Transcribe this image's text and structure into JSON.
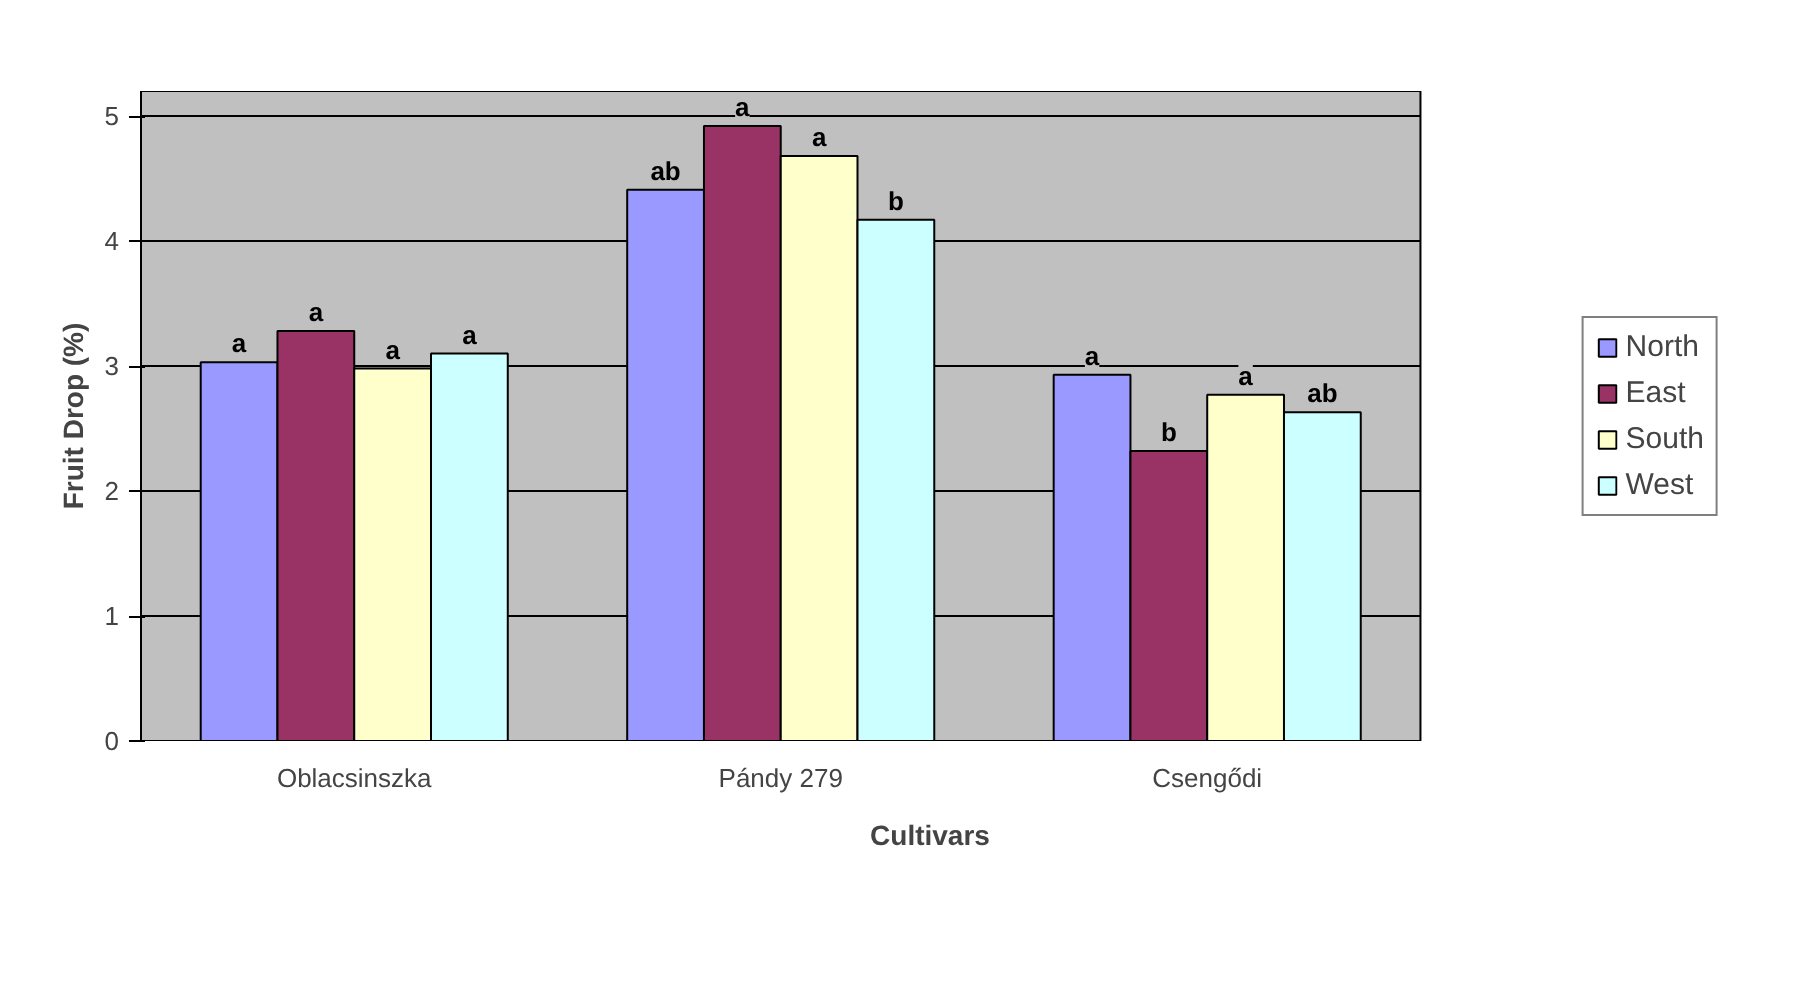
{
  "chart_data": {
    "type": "bar",
    "xlabel": "Cultivars",
    "ylabel": "Fruit Drop (%)",
    "categories": [
      "Oblacsinszka",
      "Pándy 279",
      "Csengődi"
    ],
    "series": [
      {
        "name": "North",
        "color": "#9999ff",
        "values": [
          3.03,
          4.41,
          2.93
        ],
        "value_labels": [
          "a",
          "ab",
          "a"
        ]
      },
      {
        "name": "East",
        "color": "#993366",
        "values": [
          3.28,
          4.92,
          2.32
        ],
        "value_labels": [
          "a",
          "a",
          "b"
        ]
      },
      {
        "name": "South",
        "color": "#ffffcc",
        "values": [
          2.98,
          4.68,
          2.77
        ],
        "value_labels": [
          "a",
          "a",
          "a"
        ]
      },
      {
        "name": "West",
        "color": "#ccffff",
        "values": [
          3.1,
          4.17,
          2.63
        ],
        "value_labels": [
          "a",
          "b",
          "ab"
        ]
      }
    ],
    "ylim": [
      0,
      5.2
    ],
    "yticks": [
      0,
      1,
      2,
      3,
      4,
      5
    ],
    "grid": "y",
    "legend": "right"
  }
}
